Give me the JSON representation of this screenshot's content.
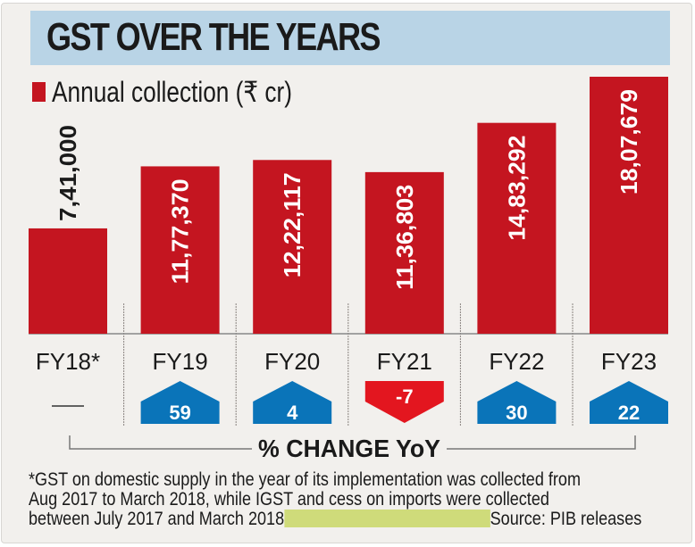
{
  "header": {
    "title": "GST OVER THE YEARS"
  },
  "legend": {
    "label": "Annual collection (₹ cr)",
    "color": "#c41520"
  },
  "chart_data": {
    "type": "bar",
    "title": "GST OVER THE YEARS",
    "xlabel": "",
    "ylabel": "Annual collection (₹ cr)",
    "categories": [
      "FY18*",
      "FY19",
      "FY20",
      "FY21",
      "FY22",
      "FY23"
    ],
    "values": [
      741000,
      1177370,
      1222117,
      1136803,
      1483292,
      1807679
    ],
    "value_labels": [
      "7,41,000",
      "11,77,370",
      "12,22,117",
      "11,36,803",
      "14,83,292",
      "18,07,679"
    ],
    "ylim": [
      0,
      1807679
    ],
    "grid": false,
    "yoy_change": {
      "label": "% CHANGE YoY",
      "values": [
        null,
        59,
        4,
        -7,
        30,
        22
      ],
      "value_labels": [
        "—",
        "59",
        "4",
        "-7",
        "30",
        "22"
      ],
      "up_color": "#0a74b9",
      "down_color": "#e3161f"
    },
    "bar_color": "#c41520"
  },
  "footnote": {
    "line1": "*GST on domestic supply in the year of its implementation was collected from",
    "line2": "Aug 2017 to March 2018, while IGST and cess on imports were collected",
    "line3": "between July 2017 and March 2018",
    "source": "Source: PIB releases"
  }
}
